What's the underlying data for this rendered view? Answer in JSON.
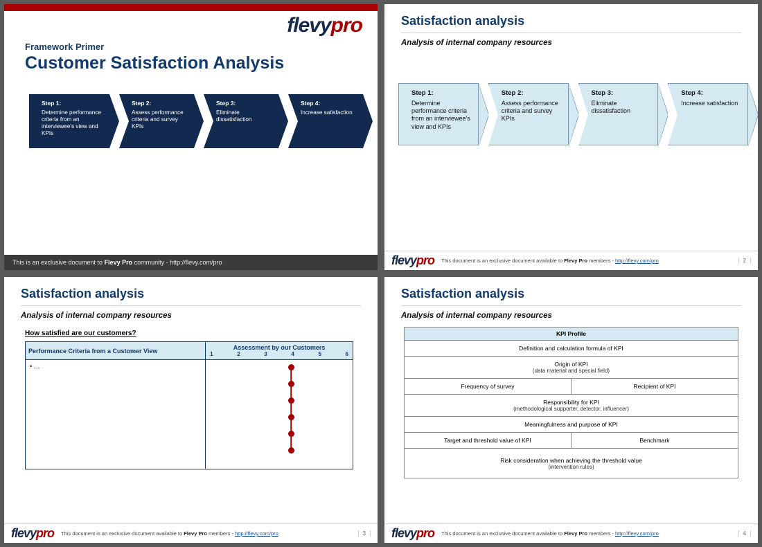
{
  "brand": {
    "dark": "flevy",
    "accent": "pro"
  },
  "colors": {
    "brandRed": "#a80000",
    "brandNavy": "#123a6b",
    "arrowDark": "#122a4f",
    "arrowLight": "#d4e9f2",
    "pageBg": "#5a5a5a"
  },
  "slide1": {
    "pretitle": "Framework Primer",
    "title": "Customer Satisfaction Analysis",
    "steps": [
      {
        "label": "Step 1:",
        "text": "Determine performance criteria from an interviewee's view and KPIs"
      },
      {
        "label": "Step 2:",
        "text": "Assess performance criteria and survey KPIs"
      },
      {
        "label": "Step 3:",
        "text": "Eliminate dissatisfaction"
      },
      {
        "label": "Step 4:",
        "text": "Increase satisfaction"
      }
    ],
    "footer_pre": "This is an exclusive document to ",
    "footer_bold": "Flevy Pro",
    "footer_post": " community - http://flevy.com/pro"
  },
  "common": {
    "heading": "Satisfaction analysis",
    "subtitle": "Analysis of internal company resources",
    "footer_pre": "This document is an exclusive document available to ",
    "footer_bold": "Flevy Pro",
    "footer_mid": " members - ",
    "footer_link": "http://flevy.com/pro"
  },
  "slide2": {
    "page": "2",
    "steps": [
      {
        "label": "Step 1:",
        "text": "Determine performance criteria from an interviewee's view and KPIs"
      },
      {
        "label": "Step 2:",
        "text": "Assess performance criteria and survey KPIs"
      },
      {
        "label": "Step 3:",
        "text": "Eliminate dissatisfaction"
      },
      {
        "label": "Step 4:",
        "text": "Increase satisfaction"
      }
    ]
  },
  "slide3": {
    "page": "3",
    "question": "How satisfied are our customers?",
    "col1": "Performance Criteria from a Customer View",
    "col2": "Assessment by our Customers",
    "scale": [
      "1",
      "2",
      "3",
      "4",
      "5",
      "6"
    ],
    "cell_placeholder": "•  …",
    "dot_count": 6,
    "dot_color": "#a80000"
  },
  "slide4": {
    "page": "4",
    "kpi": {
      "header": "KPI Profile",
      "r1": "Definition and calculation formula of KPI",
      "r2_main": "Origin of KPI",
      "r2_sub": "(data material and special field)",
      "r3a": "Frequency of survey",
      "r3b": "Recipient of KPI",
      "r4_main": "Responsibility for KPI",
      "r4_sub": "(methodological supporter, detector, influencer)",
      "r5": "Meaningfulness and purpose of KPI",
      "r6a": "Target and threshold value of KPI",
      "r6b": "Benchmark",
      "r7_main": "Risk consideration when achieving the threshold value",
      "r7_sub": "(intervention rules)"
    }
  }
}
